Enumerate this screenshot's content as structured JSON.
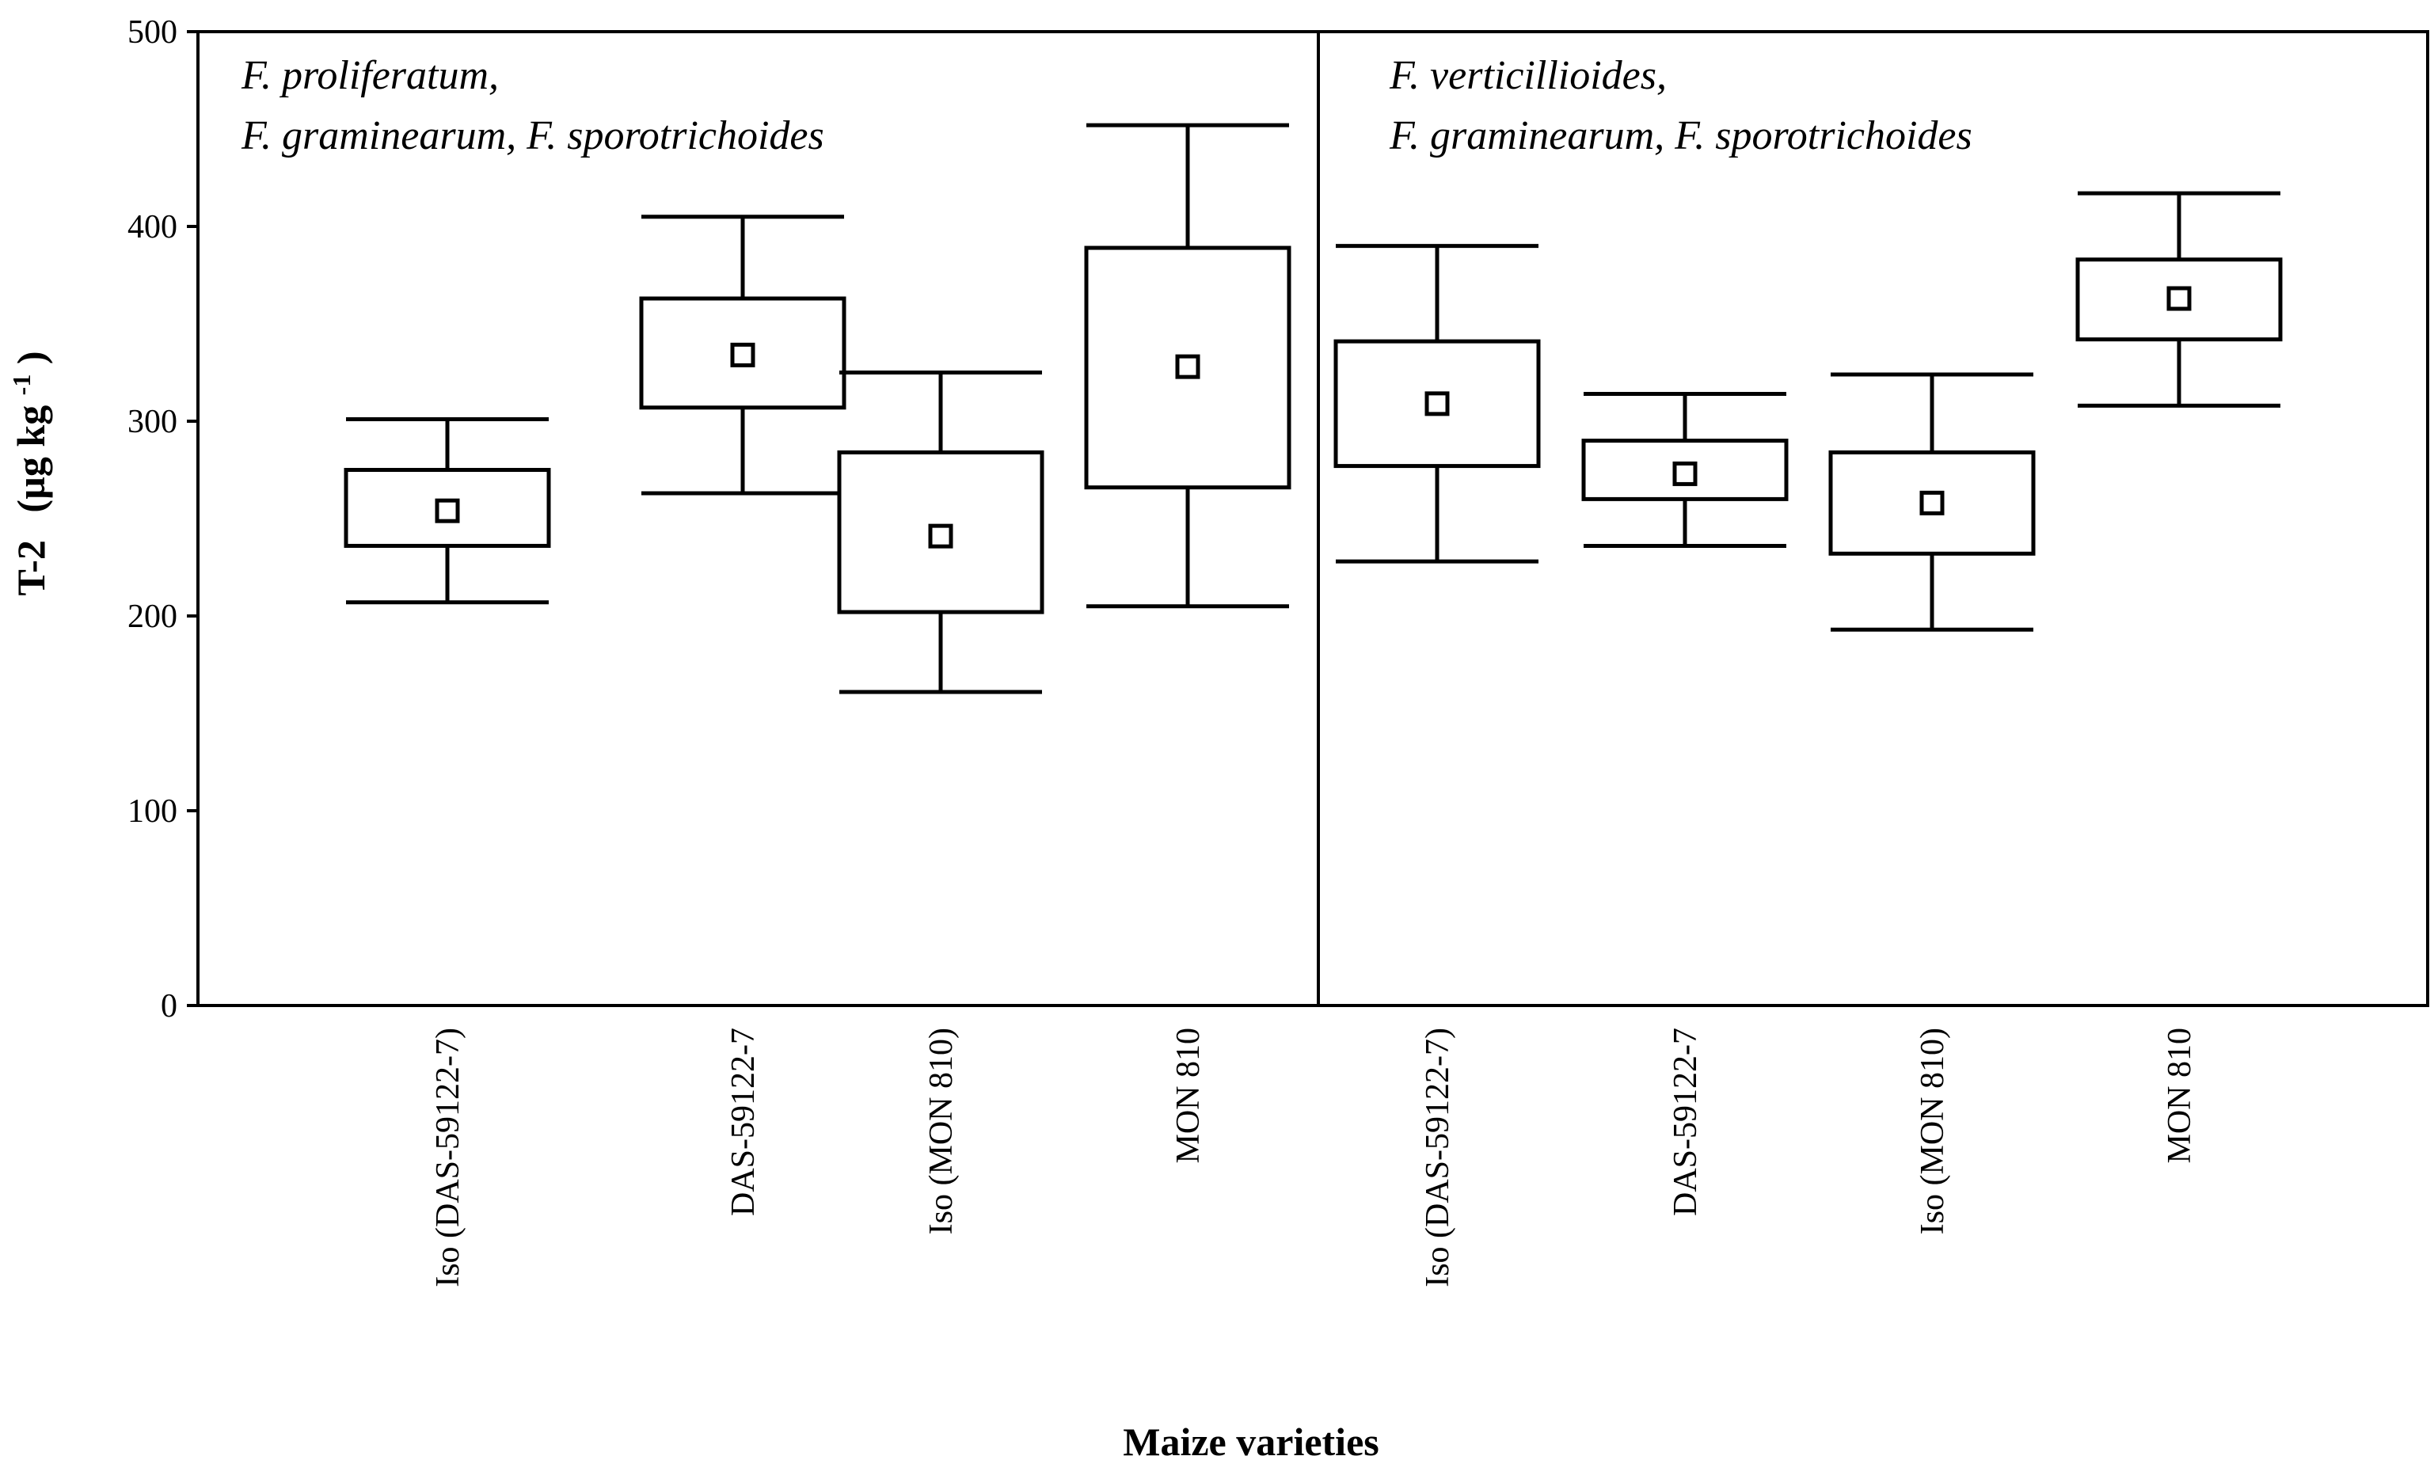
{
  "chart_data": {
    "type": "box",
    "title": "",
    "xlabel": "Maize varieties",
    "ylabel_main": "T-2",
    "ylabel_unit": "(µg kg",
    "ylabel_sup": "-1",
    "ylabel_close": ")",
    "ylim": [
      0,
      500
    ],
    "yticks": [
      0,
      100,
      200,
      300,
      400,
      500
    ],
    "grid": false,
    "panels": [
      {
        "label_lines": [
          "F. proliferatum,",
          "F. graminearum, F. sporotrichoides"
        ],
        "categories": [
          "Iso (DAS-59122-7)",
          "DAS-59122-7",
          "Iso (MON 810)",
          "MON 810"
        ],
        "boxes": [
          {
            "whisker_low": 207,
            "box_low": 236,
            "mean": 254,
            "box_high": 275,
            "whisker_high": 301
          },
          {
            "whisker_low": 263,
            "box_low": 307,
            "mean": 334,
            "box_high": 363,
            "whisker_high": 405
          },
          {
            "whisker_low": 161,
            "box_low": 202,
            "mean": 241,
            "box_high": 284,
            "whisker_high": 325
          },
          {
            "whisker_low": 205,
            "box_low": 266,
            "mean": 328,
            "box_high": 389,
            "whisker_high": 452
          }
        ]
      },
      {
        "label_lines": [
          "F. verticillioides,",
          "F. graminearum, F. sporotrichoides"
        ],
        "categories": [
          "Iso (DAS-59122-7)",
          "DAS-59122-7",
          "Iso (MON 810)",
          "MON 810"
        ],
        "boxes": [
          {
            "whisker_low": 228,
            "box_low": 277,
            "mean": 309,
            "box_high": 341,
            "whisker_high": 390
          },
          {
            "whisker_low": 236,
            "box_low": 260,
            "mean": 273,
            "box_high": 290,
            "whisker_high": 314
          },
          {
            "whisker_low": 193,
            "box_low": 232,
            "mean": 258,
            "box_high": 284,
            "whisker_high": 324
          },
          {
            "whisker_low": 308,
            "box_low": 342,
            "mean": 363,
            "box_high": 383,
            "whisker_high": 417
          }
        ]
      }
    ]
  }
}
